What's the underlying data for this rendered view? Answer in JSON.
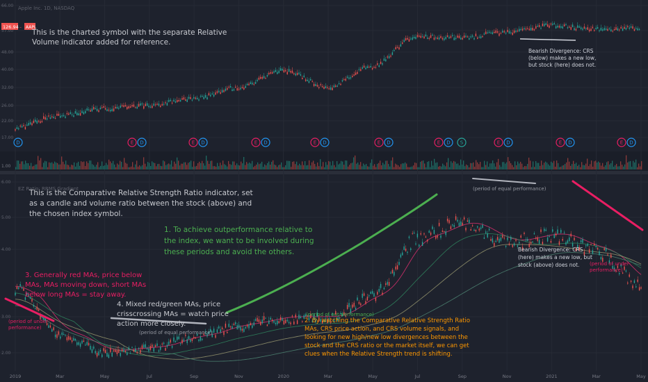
{
  "top_chart": {
    "header": "Apple Inc. 1D, NASDAQ",
    "price_badge": "126.94",
    "badge_suffix": "AAPL",
    "note": [
      "This is the charted symbol with the separate Relative",
      "Volume indicator added for reference."
    ],
    "divergence_note": [
      "Bearish Divergence: CRS",
      "(below) makes a new low,",
      "but stock (here) does not."
    ],
    "y_ticks": [
      "66.00",
      "57.00",
      "48.00",
      "40.00",
      "32.00",
      "26.00",
      "22.00",
      "17.00"
    ],
    "earnings_markers": [
      "D",
      "E",
      "D",
      "E",
      "D",
      "E",
      "D",
      "E",
      "D",
      "E",
      "D",
      "E",
      "D",
      "S",
      "E",
      "D",
      "E",
      "D",
      "E",
      "D"
    ]
  },
  "volume_pane": {
    "label": "1.00"
  },
  "bottom_chart": {
    "header": "EZ Ratio: RRMS Gradient",
    "y_ticks": [
      "6.00",
      "5.00",
      "4.00",
      "3.00",
      "2.00"
    ],
    "note_main": [
      "This is the Comparative Relative Strength Ratio indicator, set",
      "as a candle and volume ratio between the stock (above) and",
      "the chosen index symbol."
    ],
    "note_1": [
      "1. To achieve outperformance relative to",
      "the index, we want to be involved during",
      "these periods and avoid the others."
    ],
    "note_2": [
      "2. By watching the Comparative Relative Strength Ratio",
      "MAs, CRS price action, and CRS volume signals, and",
      "looking for new high/new low divergences between the",
      "stock and the CRS ratio or the market itself, we can get",
      "clues when the Relative Strength trend is shifting."
    ],
    "note_3": [
      "3. Generally red MAs, price below",
      "MAs, MAs moving down, short MAs",
      "below long MAs = stay away."
    ],
    "note_4": [
      "4. Mixed red/green MAs, price",
      "crisscrossing MAs = watch price",
      "action more closely."
    ],
    "divergence_note": [
      "Bearish Divergence: CRS",
      "(here) makes a new low, but",
      "stock (above) does not."
    ],
    "label_equal_top": "(period of equal performance)",
    "label_equal_bottom": "(period of equal performance)",
    "label_outperformance": "(period of out-performance)",
    "label_under_left": [
      "(period of under-",
      "performance)"
    ],
    "label_under_right": [
      "(period of under-",
      "performance)"
    ]
  },
  "x_axis": [
    "2019",
    "Mar",
    "May",
    "Jul",
    "Sep",
    "Nov",
    "2020",
    "Mar",
    "May",
    "Jul",
    "Sep",
    "Nov",
    "2021",
    "Mar",
    "May"
  ],
  "colors": {
    "up": "#26a69a",
    "down": "#ef5350",
    "green_line": "#4caf50",
    "pink_line": "#e91e63",
    "note_gray": "#c8cad0",
    "note_green": "#4caf50",
    "note_orange": "#ff9800",
    "note_red": "#e91e63"
  },
  "chart_data": [
    {
      "type": "line",
      "title": "Apple Inc. 1D, NASDAQ",
      "x": [
        "2019",
        "Mar",
        "May",
        "Jul",
        "Sep",
        "Nov",
        "2020",
        "Mar",
        "May",
        "Jul",
        "Sep",
        "Nov",
        "2021",
        "Mar",
        "May"
      ],
      "series": [
        {
          "values": [
            19,
            22,
            24,
            25,
            27,
            31,
            38,
            31,
            40,
            58,
            57,
            61,
            66,
            63,
            64
          ]
        }
      ],
      "y_scale": "log"
    },
    {
      "type": "line",
      "title": "EZ Ratio: RRMS Gradient",
      "x": [
        "2019",
        "Mar",
        "May",
        "Jul",
        "Sep",
        "Nov",
        "2020",
        "Mar",
        "May",
        "Jul",
        "Sep",
        "Nov",
        "2021",
        "Mar",
        "May"
      ],
      "series": [
        {
          "values": [
            3.9,
            2.7,
            2.2,
            2.3,
            2.6,
            2.9,
            3.1,
            3.1,
            3.7,
            5.2,
            5.6,
            5.1,
            5.3,
            4.9,
            4.0
          ]
        }
      ]
    }
  ]
}
